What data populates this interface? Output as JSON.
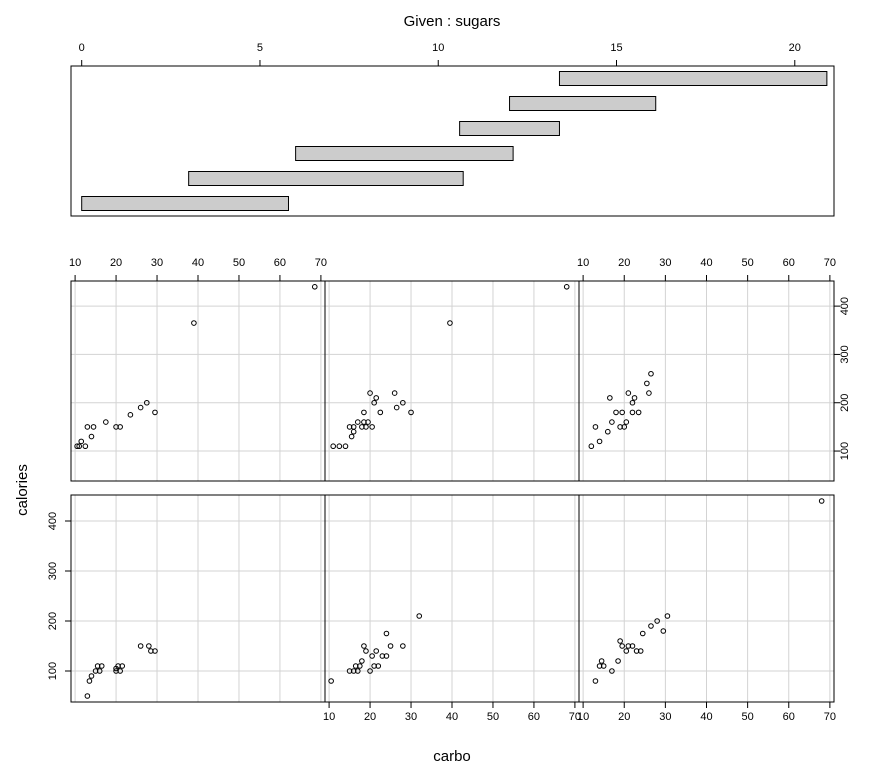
{
  "chart_data": {
    "type": "scatter",
    "plot_kind": "coplot",
    "given": {
      "title": "Given : sugars",
      "xlim": [
        -0.3,
        21.1
      ],
      "ticks": [
        0,
        5,
        10,
        15,
        20
      ],
      "intervals": [
        [
          0,
          5.8
        ],
        [
          3,
          10.7
        ],
        [
          6,
          12.1
        ],
        [
          10.6,
          13.4
        ],
        [
          12,
          16.1
        ],
        [
          13.4,
          20.9
        ]
      ],
      "bar_fill": "#cccccc"
    },
    "xlabel": "carbo",
    "ylabel": "calories",
    "panel_xlim": [
      9,
      71
    ],
    "panel_ylim": [
      38,
      452
    ],
    "x_ticks": [
      10,
      20,
      30,
      40,
      50,
      60,
      70
    ],
    "y_ticks": [
      100,
      200,
      300,
      400
    ],
    "grid": true,
    "grid_color": "#d3d3d3",
    "panels": [
      {
        "row": "bottom",
        "col": 1,
        "points": [
          [
            13,
            50
          ],
          [
            13.5,
            80
          ],
          [
            14,
            90
          ],
          [
            15,
            100
          ],
          [
            15.5,
            110
          ],
          [
            16,
            100
          ],
          [
            16.5,
            110
          ],
          [
            20,
            100
          ],
          [
            20,
            105
          ],
          [
            20.5,
            110
          ],
          [
            21,
            100
          ],
          [
            21.5,
            110
          ],
          [
            26,
            150
          ],
          [
            28,
            150
          ],
          [
            28.5,
            140
          ],
          [
            29.5,
            140
          ]
        ]
      },
      {
        "row": "bottom",
        "col": 2,
        "points": [
          [
            10.5,
            80
          ],
          [
            15,
            100
          ],
          [
            16,
            100
          ],
          [
            16.5,
            110
          ],
          [
            17,
            100
          ],
          [
            17.5,
            110
          ],
          [
            18,
            120
          ],
          [
            18.5,
            150
          ],
          [
            19,
            140
          ],
          [
            20,
            100
          ],
          [
            20.5,
            130
          ],
          [
            21,
            110
          ],
          [
            21.5,
            140
          ],
          [
            22,
            110
          ],
          [
            23,
            130
          ],
          [
            24,
            130
          ],
          [
            24,
            175
          ],
          [
            25,
            150
          ],
          [
            28,
            150
          ],
          [
            32,
            210
          ]
        ]
      },
      {
        "row": "bottom",
        "col": 3,
        "points": [
          [
            13,
            80
          ],
          [
            14,
            110
          ],
          [
            14.5,
            120
          ],
          [
            15,
            110
          ],
          [
            17,
            100
          ],
          [
            18.5,
            120
          ],
          [
            19,
            160
          ],
          [
            19.5,
            150
          ],
          [
            20.5,
            140
          ],
          [
            21,
            150
          ],
          [
            22,
            150
          ],
          [
            23,
            140
          ],
          [
            24,
            140
          ],
          [
            24.5,
            175
          ],
          [
            26.5,
            190
          ],
          [
            28,
            200
          ],
          [
            29.5,
            180
          ],
          [
            30.5,
            210
          ],
          [
            68,
            440
          ]
        ]
      },
      {
        "row": "top",
        "col": 1,
        "points": [
          [
            10.5,
            110
          ],
          [
            11,
            110
          ],
          [
            11.5,
            120
          ],
          [
            12.5,
            110
          ],
          [
            13,
            150
          ],
          [
            14,
            130
          ],
          [
            14.5,
            150
          ],
          [
            17.5,
            160
          ],
          [
            20,
            150
          ],
          [
            21,
            150
          ],
          [
            23.5,
            175
          ],
          [
            26,
            190
          ],
          [
            27.5,
            200
          ],
          [
            29.5,
            180
          ],
          [
            39,
            365
          ],
          [
            68.5,
            440
          ]
        ]
      },
      {
        "row": "top",
        "col": 2,
        "points": [
          [
            11,
            110
          ],
          [
            12.5,
            110
          ],
          [
            14,
            110
          ],
          [
            15,
            150
          ],
          [
            15.5,
            130
          ],
          [
            16,
            140
          ],
          [
            16,
            150
          ],
          [
            17,
            160
          ],
          [
            18,
            150
          ],
          [
            18.5,
            160
          ],
          [
            18.5,
            180
          ],
          [
            19,
            150
          ],
          [
            19.5,
            160
          ],
          [
            20,
            220
          ],
          [
            20.5,
            150
          ],
          [
            21,
            200
          ],
          [
            21.5,
            210
          ],
          [
            22.5,
            180
          ],
          [
            26,
            220
          ],
          [
            26.5,
            190
          ],
          [
            28,
            200
          ],
          [
            30,
            180
          ],
          [
            39.5,
            365
          ],
          [
            68,
            440
          ]
        ]
      },
      {
        "row": "top",
        "col": 3,
        "points": [
          [
            12,
            110
          ],
          [
            13,
            150
          ],
          [
            14,
            120
          ],
          [
            16,
            140
          ],
          [
            16.5,
            210
          ],
          [
            17,
            160
          ],
          [
            18,
            180
          ],
          [
            19,
            150
          ],
          [
            19.5,
            180
          ],
          [
            20,
            150
          ],
          [
            20.5,
            160
          ],
          [
            21,
            220
          ],
          [
            22,
            180
          ],
          [
            22,
            200
          ],
          [
            22.5,
            210
          ],
          [
            23.5,
            180
          ],
          [
            25.5,
            240
          ],
          [
            26,
            220
          ],
          [
            26.5,
            260
          ]
        ]
      }
    ]
  }
}
